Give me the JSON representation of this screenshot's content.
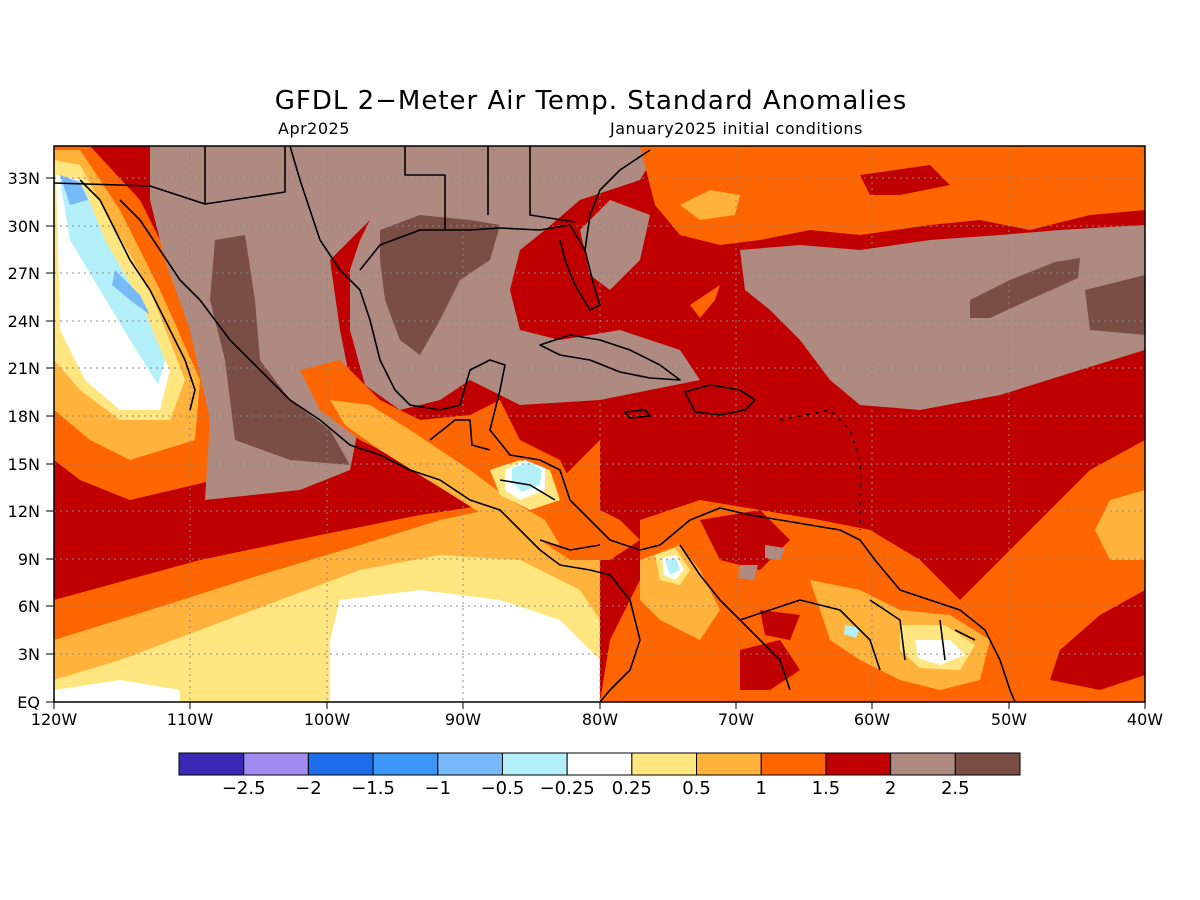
{
  "title": "GFDL 2−Meter Air Temp. Standard Anomalies",
  "valid_month": "Apr2025",
  "init_conditions": "January2025 initial conditions",
  "map": {
    "lat_labels": [
      "33N",
      "30N",
      "27N",
      "24N",
      "21N",
      "18N",
      "15N",
      "12N",
      "9N",
      "6N",
      "3N",
      "EQ"
    ],
    "lon_labels": [
      "120W",
      "110W",
      "100W",
      "90W",
      "80W",
      "70W",
      "60W",
      "50W",
      "40W"
    ],
    "grid": "dotted",
    "colors": {
      "cat_2_5": "#7a4e44",
      "cat_2": "#ae8a80",
      "cat_1_5": "#c00000",
      "cat_1": "#ff6600",
      "cat_0_5": "#ffb33c",
      "cat_0_25": "#ffe680",
      "cat_neutral": "#ffffff",
      "cat_neg_0_25": "#b4f0fa",
      "cat_neg_0_5": "#78b9fa",
      "cat_neg_1": "#3c96f5",
      "cat_neg_1_5": "#1e6eeb",
      "land_outline": "#000000"
    }
  },
  "colorbar": {
    "colors": [
      "#3c28b4",
      "#a08cf0",
      "#1e6eeb",
      "#3c96f5",
      "#78b9fa",
      "#b4f0fa",
      "#ffffff",
      "#ffe680",
      "#ffb33c",
      "#ff6600",
      "#c00000",
      "#ae8a80",
      "#7a4e44"
    ],
    "labels": [
      "−2.5",
      "−2",
      "−1.5",
      "−1",
      "−0.5",
      "−0.25",
      "0.25",
      "0.5",
      "1",
      "1.5",
      "2",
      "2.5"
    ]
  }
}
